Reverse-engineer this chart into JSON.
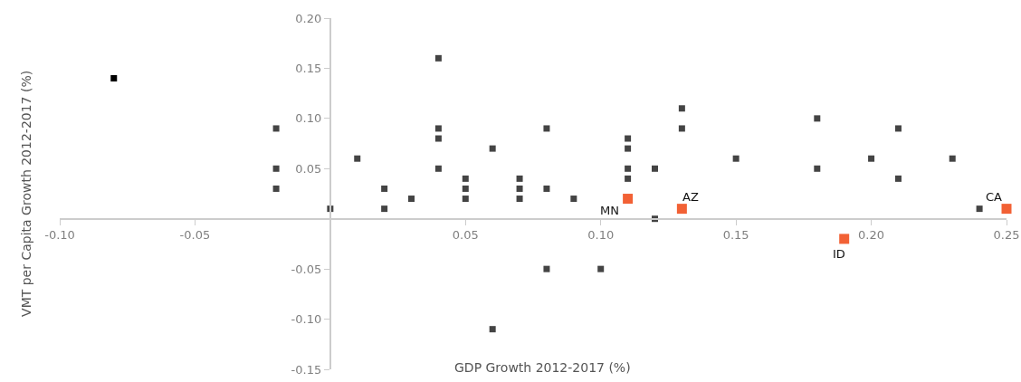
{
  "chart_data": {
    "type": "scatter",
    "xlabel": "GDP Growth 2012-2017 (%)",
    "ylabel": "VMT per Capita Growth 2012-2017 (%)",
    "xlim": [
      -0.1,
      0.25
    ],
    "ylim": [
      -0.15,
      0.2
    ],
    "xticks": [
      {
        "value": -0.1,
        "label": "-0.10"
      },
      -0.05,
      0.05,
      {
        "value": 0.1,
        "label": "0.10"
      },
      0.15,
      {
        "value": 0.2,
        "label": "0.20"
      },
      0.25
    ],
    "yticks": [
      -0.15,
      {
        "value": -0.1,
        "label": "-0.10"
      },
      -0.05,
      0.05,
      {
        "value": 0.1,
        "label": "0.10"
      },
      0.15,
      {
        "value": 0.2,
        "label": "0.20"
      }
    ],
    "marker": "square",
    "series": [
      {
        "color": "#444444",
        "x": [
          -0.02,
          -0.02,
          -0.02,
          0,
          0.01,
          0.02,
          0.02,
          0.03,
          0.04,
          0.04,
          0.04,
          0.04,
          0.05,
          0.05,
          0.05,
          0.06,
          0.06,
          0.07,
          0.07,
          0.07,
          0.08,
          0.08,
          0.08,
          0.09,
          0.1,
          0.11,
          0.11,
          0.11,
          0.11,
          0.12,
          0.12,
          0.13,
          0.13,
          0.15,
          0.18,
          0.18,
          0.2,
          0.21,
          0.21,
          0.23,
          0.24
        ],
        "values": [
          0.09,
          0.05,
          0.03,
          0.01,
          0.06,
          0.03,
          0.01,
          0.02,
          0.16,
          0.09,
          0.08,
          0.05,
          0.04,
          0.03,
          0.02,
          0.07,
          -0.11,
          0.04,
          0.03,
          0.02,
          0.09,
          0.03,
          -0.05,
          0.02,
          -0.05,
          0.08,
          0.07,
          0.05,
          0.04,
          0.05,
          0,
          0.11,
          0.09,
          0.06,
          0.1,
          0.05,
          0.06,
          0.09,
          0.04,
          0.06,
          0.01
        ]
      },
      {
        "color": "#000000",
        "x": [
          -0.08
        ],
        "values": [
          0.14
        ]
      },
      {
        "color": "#f26135",
        "x": [
          0.11,
          0.13,
          0.19,
          0.25
        ],
        "values": [
          0.02,
          0.01,
          -0.02,
          0.01
        ]
      }
    ],
    "annotations": [
      {
        "text": "MN",
        "x": 0.11,
        "y": 0.02
      },
      {
        "text": "AZ",
        "x": 0.13,
        "y": 0.01
      },
      {
        "text": "ID",
        "x": 0.19,
        "y": -0.02
      },
      {
        "text": "CA",
        "x": 0.25,
        "y": 0.01
      }
    ]
  }
}
